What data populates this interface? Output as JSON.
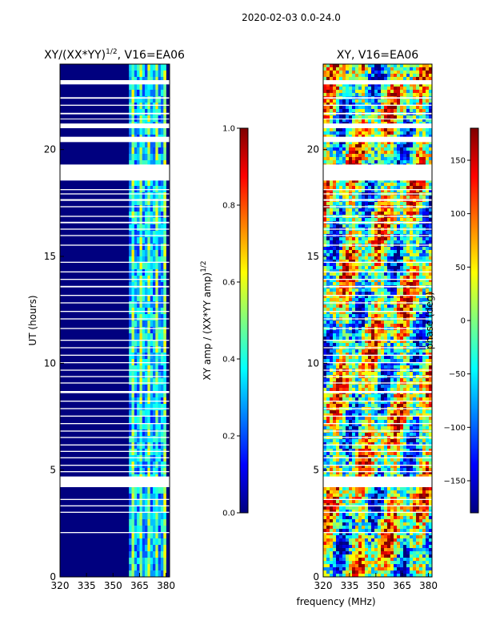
{
  "figure_title": "2020-02-03 0.0-24.0",
  "xlabel_shared": "frequency (MHz)",
  "colors": {
    "jet": [
      "#00007f",
      "#0000ff",
      "#007fff",
      "#00ffff",
      "#7fff7f",
      "#ffff00",
      "#ff7f00",
      "#ff0000",
      "#7f0000"
    ],
    "gap": "#ffffff",
    "axis": "#000000"
  },
  "gap_rows_ut": [
    [
      23.05,
      23.25
    ],
    [
      22.38,
      22.45
    ],
    [
      22.05,
      22.1
    ],
    [
      21.65,
      21.72
    ],
    [
      21.42,
      21.45
    ],
    [
      21.0,
      21.22
    ],
    [
      20.35,
      20.6
    ],
    [
      18.55,
      19.3
    ],
    [
      18.1,
      18.15
    ],
    [
      17.9,
      17.95
    ],
    [
      17.6,
      17.68
    ],
    [
      17.3,
      17.35
    ],
    [
      16.85,
      16.9
    ],
    [
      16.55,
      16.62
    ],
    [
      16.25,
      16.3
    ],
    [
      15.95,
      16.0
    ],
    [
      15.5,
      15.55
    ],
    [
      14.7,
      14.75
    ],
    [
      14.25,
      14.3
    ],
    [
      13.9,
      13.95
    ],
    [
      13.55,
      13.62
    ],
    [
      13.15,
      13.2
    ],
    [
      12.8,
      12.85
    ],
    [
      12.4,
      12.45
    ],
    [
      12.05,
      12.1
    ],
    [
      11.6,
      11.65
    ],
    [
      11.05,
      11.1
    ],
    [
      10.7,
      10.75
    ],
    [
      10.35,
      10.4
    ],
    [
      10.0,
      10.05
    ],
    [
      9.65,
      9.7
    ],
    [
      9.35,
      9.4
    ],
    [
      9.05,
      9.1
    ],
    [
      8.6,
      8.7
    ],
    [
      8.2,
      8.25
    ],
    [
      7.85,
      7.9
    ],
    [
      7.5,
      7.55
    ],
    [
      7.15,
      7.2
    ],
    [
      6.8,
      6.85
    ],
    [
      6.5,
      6.55
    ],
    [
      6.15,
      6.2
    ],
    [
      5.85,
      5.9
    ],
    [
      5.55,
      5.6
    ],
    [
      5.2,
      5.25
    ],
    [
      4.9,
      4.95
    ],
    [
      4.2,
      4.7
    ],
    [
      3.6,
      3.65
    ],
    [
      3.3,
      3.35
    ],
    [
      3.0,
      3.05
    ],
    [
      2.05,
      2.1
    ]
  ],
  "chart_data": [
    {
      "type": "heatmap",
      "id": "amp",
      "title": "XY/(XX*YY)^{1/2}, V16=EA06",
      "title_main": "XY/(XX*YY)",
      "title_sup": "1/2",
      "title_tail": ", V16=EA06",
      "xlabel": "",
      "ylabel": "UT (hours)",
      "xlim": [
        320,
        382
      ],
      "ylim": [
        0,
        24
      ],
      "xticks": [
        "320",
        "335",
        "350",
        "365",
        "380"
      ],
      "xtick_values": [
        320,
        335,
        350,
        365,
        380
      ],
      "yticks": [
        "0",
        "5",
        "10",
        "15",
        "20"
      ],
      "ytick_values": [
        0,
        5,
        10,
        15,
        20
      ],
      "band_mhz": [
        359,
        380
      ],
      "colorbar": {
        "label_main": "XY amp / (XX*YY amp)",
        "label_sup": "1/2",
        "range": [
          0.0,
          1.0
        ],
        "ticks": [
          "0.0",
          "0.2",
          "0.4",
          "0.6",
          "0.8",
          "1.0"
        ],
        "tick_values": [
          0.0,
          0.2,
          0.4,
          0.6,
          0.8,
          1.0
        ]
      }
    },
    {
      "type": "heatmap",
      "id": "phase",
      "title": "XY, V16=EA06",
      "xlabel": "frequency (MHz)",
      "ylabel": "",
      "xlim": [
        320,
        382
      ],
      "ylim": [
        0,
        24
      ],
      "xticks": [
        "320",
        "335",
        "350",
        "365",
        "380"
      ],
      "xtick_values": [
        320,
        335,
        350,
        365,
        380
      ],
      "yticks": [
        "0",
        "5",
        "10",
        "15",
        "20"
      ],
      "ytick_values": [
        0,
        5,
        10,
        15,
        20
      ],
      "colorbar": {
        "label": "phase (deg)",
        "range": [
          -180,
          180
        ],
        "ticks": [
          "150",
          "100",
          "50",
          "0",
          "−50",
          "−100",
          "−150"
        ],
        "tick_values": [
          150,
          100,
          50,
          0,
          -50,
          -100,
          -150
        ]
      }
    }
  ]
}
